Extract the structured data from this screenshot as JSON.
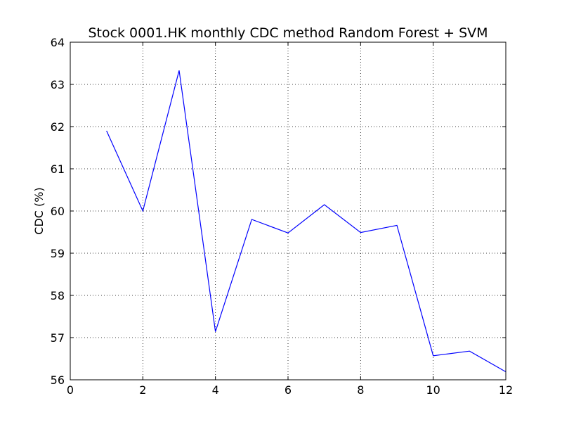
{
  "chart_data": {
    "type": "line",
    "title": "Stock 0001.HK monthly CDC method Random Forest + SVM",
    "xlabel": "",
    "ylabel": "CDC (%)",
    "xlim": [
      0,
      12
    ],
    "ylim": [
      56,
      64
    ],
    "xticks": [
      0,
      2,
      4,
      6,
      8,
      10,
      12
    ],
    "yticks": [
      56,
      57,
      58,
      59,
      60,
      61,
      62,
      63,
      64
    ],
    "grid": true,
    "series": [
      {
        "name": "CDC",
        "color": "#0000ff",
        "x": [
          1,
          2,
          3,
          4,
          5,
          6,
          7,
          8,
          9,
          10,
          11,
          12
        ],
        "y": [
          61.9,
          60.0,
          63.33,
          57.14,
          59.8,
          59.48,
          60.15,
          59.49,
          59.66,
          56.57,
          56.68,
          56.19
        ]
      }
    ]
  }
}
